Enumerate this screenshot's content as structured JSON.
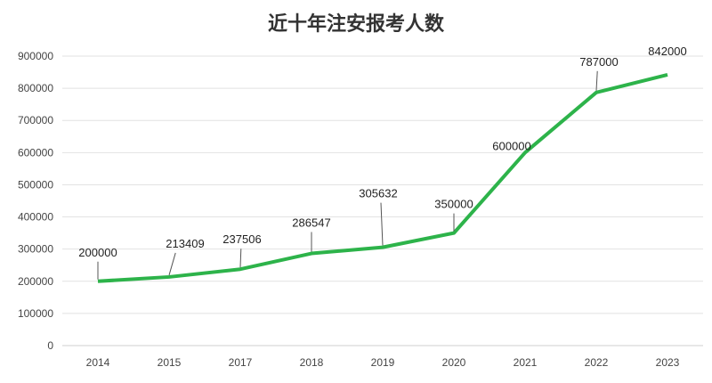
{
  "chart_data": {
    "type": "line",
    "title": "近十年注安报考人数",
    "categories": [
      "2014",
      "2015",
      "2017",
      "2018",
      "2019",
      "2020",
      "2021",
      "2022",
      "2023"
    ],
    "series": [
      {
        "values": [
          200000,
          213409,
          237506,
          286547,
          305632,
          350000,
          600000,
          787000,
          842000
        ],
        "color": "#2db34a"
      }
    ],
    "data_labels": [
      "200000",
      "213409",
      "237506",
      "286547",
      "305632",
      "350000",
      "600000",
      "787000",
      "842000"
    ],
    "ylim": [
      0,
      900000
    ],
    "yticks": [
      "0",
      "100000",
      "200000",
      "300000",
      "400000",
      "500000",
      "600000",
      "700000",
      "800000",
      "900000"
    ],
    "grid": true,
    "legend": "none"
  }
}
